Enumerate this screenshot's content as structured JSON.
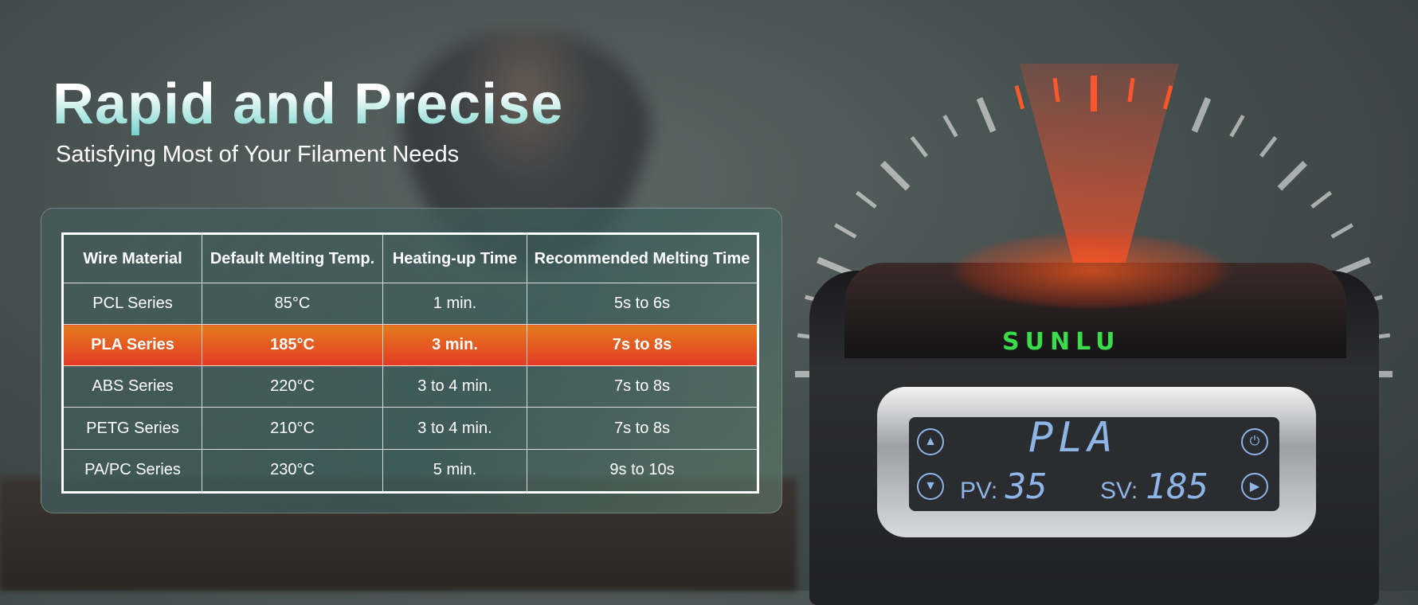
{
  "headline": {
    "title": "Rapid and Precise",
    "subtitle": "Satisfying Most of Your Filament Needs"
  },
  "table": {
    "headers": [
      "Wire Material",
      "Default Melting Temp.",
      "Heating-up Time",
      "Recommended Melting Time"
    ],
    "rows": [
      [
        "PCL Series",
        "85°C",
        "1 min.",
        "5s to 6s"
      ],
      [
        "PLA Series",
        "185°C",
        "3 min.",
        "7s to 8s"
      ],
      [
        "ABS Series",
        "220°C",
        "3 to 4 min.",
        "7s to 8s"
      ],
      [
        "PETG Series",
        "210°C",
        "3 to 4 min.",
        "7s to 8s"
      ],
      [
        "PA/PC Series",
        "230°C",
        "5 min.",
        "9s to 10s"
      ]
    ],
    "highlight_color": "#e4571f"
  },
  "device": {
    "brand": "SUNLU",
    "display": {
      "mode": "PLA",
      "pv_label": "PV:",
      "pv_value": "35",
      "sv_label": "SV:",
      "sv_value": "185"
    },
    "buttons": {
      "up": "up-triangle-icon",
      "down": "down-triangle-icon",
      "power": "power-icon",
      "next": "play-icon"
    }
  }
}
